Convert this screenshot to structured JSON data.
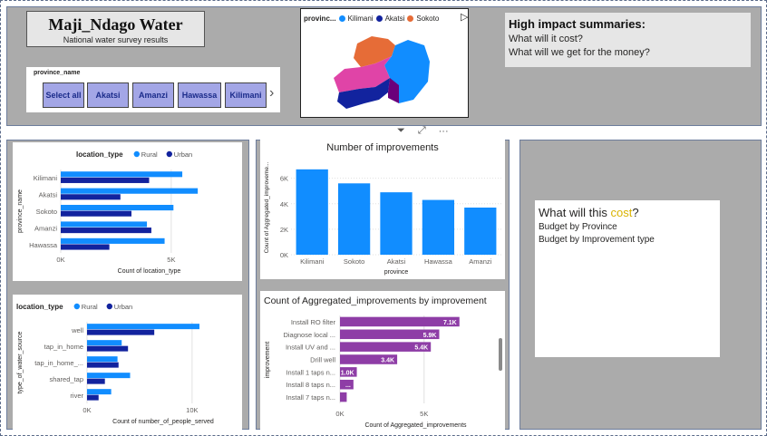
{
  "header": {
    "title": "Maji_Ndago Water",
    "subtitle": "National water survey results"
  },
  "slicer": {
    "label": "province_name",
    "buttons": [
      "Select all",
      "Akatsi",
      "Amanzi",
      "Hawassa",
      "Kilimani"
    ],
    "next": "›"
  },
  "map": {
    "legend_title": "provinc...",
    "legend": [
      {
        "name": "Kilimani",
        "color": "#118dff"
      },
      {
        "name": "Akatsi",
        "color": "#12239e"
      },
      {
        "name": "Sokoto",
        "color": "#e66c37"
      }
    ],
    "play": "▷"
  },
  "visual_header": {
    "filter": "⏷",
    "focus": "⤢",
    "more": "···"
  },
  "summaries": {
    "title": "High impact summaries:",
    "lines": [
      "What will it cost?",
      "What will we get for the money?"
    ]
  },
  "cost_card": {
    "title_pre": "What will this ",
    "title_hl": "cost",
    "title_post": "?",
    "lines": [
      "Budget by Province",
      "Budget by Improvement type"
    ]
  },
  "colors": {
    "rural": "#118dff",
    "urban": "#12239e",
    "purple": "#8e3da6",
    "grid": "#e0e0e0"
  },
  "chart_data": [
    {
      "type": "bar",
      "orientation": "horizontal",
      "legend_title": "location_type",
      "categories": [
        "Kilimani",
        "Akatsi",
        "Sokoto",
        "Amanzi",
        "Hawassa"
      ],
      "series": [
        {
          "name": "Rural",
          "values": [
            5500,
            6200,
            5100,
            3900,
            4700
          ]
        },
        {
          "name": "Urban",
          "values": [
            4000,
            2700,
            3200,
            4100,
            2200
          ]
        }
      ],
      "xlabel": "Count of location_type",
      "ylabel": "province_name",
      "xlim": [
        0,
        8000
      ],
      "xticks": [
        {
          "v": 0,
          "label": "0K"
        },
        {
          "v": 5000,
          "label": "5K"
        }
      ]
    },
    {
      "type": "bar",
      "orientation": "vertical",
      "title": "Number of improvements",
      "categories": [
        "Kilimani",
        "Sokoto",
        "Akatsi",
        "Hawassa",
        "Amanzi"
      ],
      "values": [
        6700,
        5600,
        4900,
        4300,
        3700
      ],
      "xlabel": "province",
      "ylabel": "Count of Aggregated_improveme...",
      "ylim": [
        0,
        7400
      ],
      "yticks": [
        {
          "v": 0,
          "label": "0K"
        },
        {
          "v": 2000,
          "label": "2K"
        },
        {
          "v": 4000,
          "label": "4K"
        },
        {
          "v": 6000,
          "label": "6K"
        }
      ]
    },
    {
      "type": "bar",
      "orientation": "horizontal",
      "legend_title": "location_type",
      "categories": [
        "well",
        "tap_in_home",
        "tap_in_home_...",
        "shared_tap",
        "river"
      ],
      "series": [
        {
          "name": "Rural",
          "values": [
            10700,
            3300,
            2900,
            4100,
            2300
          ]
        },
        {
          "name": "Urban",
          "values": [
            6400,
            3900,
            3000,
            1700,
            1100
          ]
        }
      ],
      "xlabel": "Count of number_of_people_served",
      "ylabel": "type_of_water_source",
      "xlim": [
        0,
        14500
      ],
      "xticks": [
        {
          "v": 0,
          "label": "0K"
        },
        {
          "v": 10000,
          "label": "10K"
        }
      ]
    },
    {
      "type": "bar",
      "orientation": "horizontal",
      "title": "Count of Aggregated_improvements by improvement",
      "categories": [
        "Install RO filter",
        "Diagnose local ...",
        "Install UV and ...",
        "Drill well",
        "Install 1 taps n...",
        "Install 8 taps n...",
        "Install 7 taps n..."
      ],
      "values": [
        7100,
        5900,
        5400,
        3400,
        1000,
        800,
        400
      ],
      "data_labels": [
        "7.1K",
        "5.9K",
        "5.4K",
        "3.4K",
        "1.0K",
        "...",
        ""
      ],
      "xlabel": "Count of Aggregated_improvements",
      "ylabel": "improvement",
      "xlim": [
        0,
        9000
      ],
      "xticks": [
        {
          "v": 0,
          "label": "0K"
        },
        {
          "v": 5000,
          "label": "5K"
        }
      ]
    }
  ]
}
